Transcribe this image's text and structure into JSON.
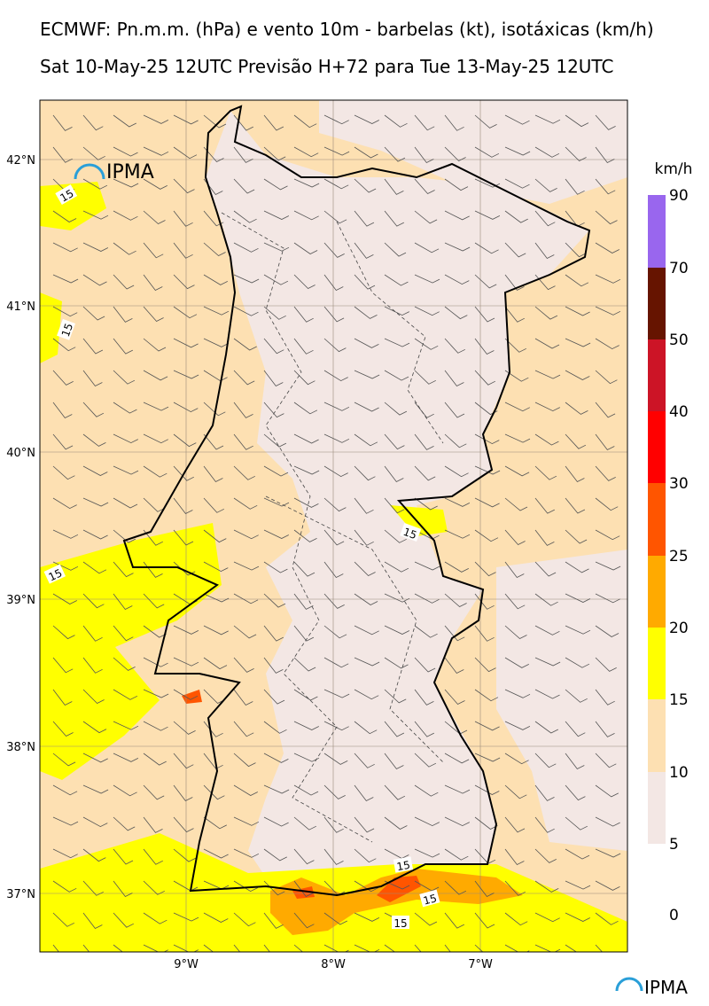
{
  "header": {
    "title": "ECMWF: Pn.m.m. (hPa) e vento 10m - barbelas (kt), isotáxicas (km/h)",
    "subtitle": "Sat 10-May-25 12UTC Previsão H+72 para Tue 13-May-25 12UTC"
  },
  "map": {
    "lat_labels": [
      "42°N",
      "41°N",
      "40°N",
      "39°N",
      "38°N",
      "37°N"
    ],
    "lon_labels": [
      "9°W",
      "8°W",
      "7°W"
    ],
    "contour_labels": [
      "15",
      "15",
      "15",
      "15",
      "15",
      "15",
      "15"
    ],
    "logo": "IPMA"
  },
  "colorbar": {
    "unit": "km/h",
    "ticks": [
      "0",
      "5",
      "10",
      "15",
      "20",
      "25",
      "30",
      "40",
      "50",
      "70",
      "90"
    ],
    "colors": [
      "#f3e7e4",
      "#fde0b2",
      "#ffff00",
      "#ffaa00",
      "#ff5500",
      "#ff0000",
      "#cc1426",
      "#661400",
      "#9966ee"
    ]
  },
  "footer": {
    "logo": "IPMA"
  }
}
